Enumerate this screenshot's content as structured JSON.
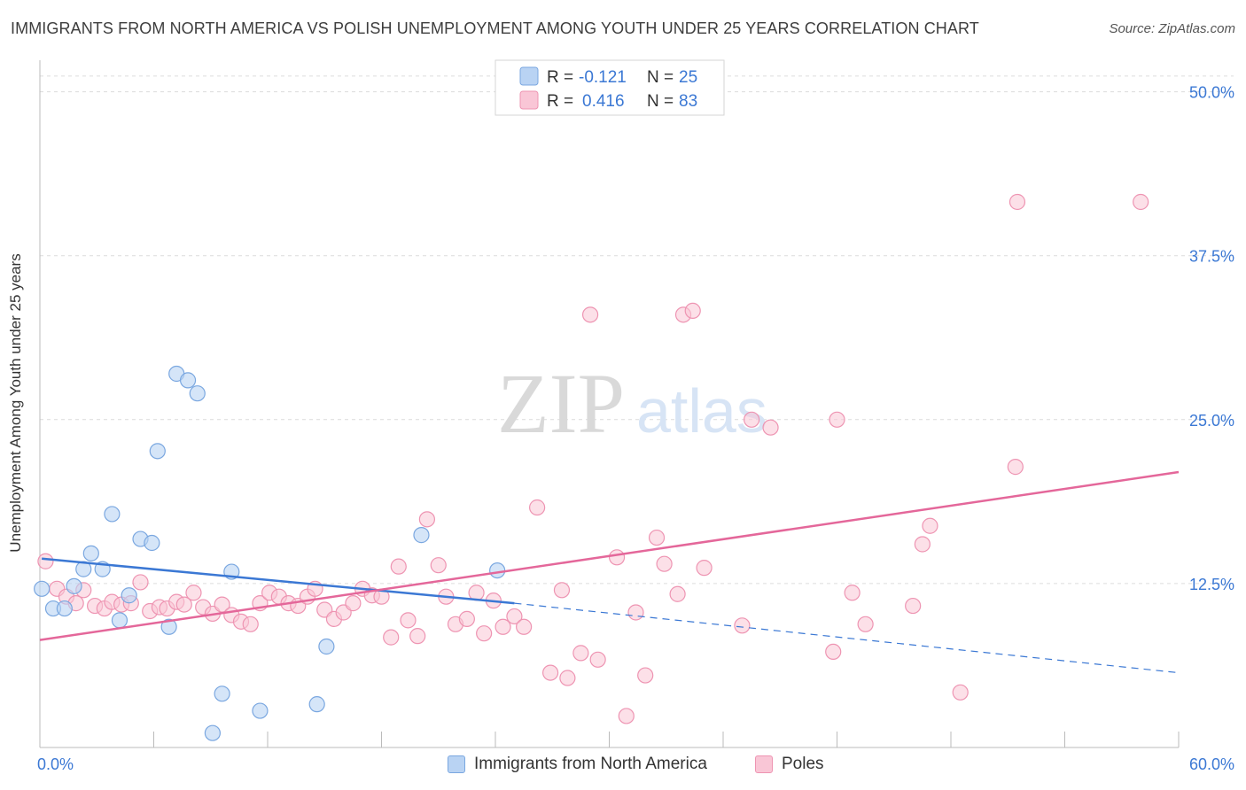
{
  "header": {
    "title": "IMMIGRANTS FROM NORTH AMERICA VS POLISH UNEMPLOYMENT AMONG YOUTH UNDER 25 YEARS CORRELATION CHART",
    "source": "Source: ZipAtlas.com"
  },
  "watermark": {
    "zip": "ZIP",
    "atlas": "atlas"
  },
  "colors": {
    "blue_fill": "#b9d3f3",
    "blue_stroke": "#7aa7e0",
    "blue_line": "#3b78d4",
    "pink_fill": "#f9c6d6",
    "pink_stroke": "#ee94b2",
    "pink_line": "#e4679a",
    "value_text": "#3b78d4"
  },
  "legend": {
    "rows": [
      {
        "r_label": "R =",
        "r_value": "-0.121",
        "n_label": "N =",
        "n_value": "25"
      },
      {
        "r_label": "R =",
        "r_value": "0.416",
        "n_label": "N =",
        "n_value": "83"
      }
    ]
  },
  "bottom_legend": [
    "Immigrants from North America",
    "Poles"
  ],
  "chart_data": {
    "type": "scatter",
    "title": "IMMIGRANTS FROM NORTH AMERICA VS POLISH UNEMPLOYMENT AMONG YOUTH UNDER 25 YEARS CORRELATION CHART",
    "xlabel": "",
    "ylabel": "Unemployment Among Youth under 25 years",
    "xlim": [
      0,
      60
    ],
    "ylim": [
      0,
      52
    ],
    "x_tick_labels": [
      "0.0%",
      "60.0%"
    ],
    "y_ticks": [
      12.5,
      25.0,
      37.5,
      50.0
    ],
    "y_tick_labels": [
      "12.5%",
      "25.0%",
      "37.5%",
      "50.0%"
    ],
    "grid": "horizontal dashed",
    "legend_position": "top-center",
    "series": [
      {
        "name": "Immigrants from North America",
        "r": -0.121,
        "n": 25,
        "trend": {
          "x0": 0.1,
          "y0": 14.4,
          "x1": 25,
          "y1": 11.0,
          "dashed_to_x": 60,
          "dashed_to_y": 5.7
        },
        "points": [
          [
            0.1,
            12.1
          ],
          [
            0.7,
            10.6
          ],
          [
            1.3,
            10.6
          ],
          [
            1.8,
            12.3
          ],
          [
            2.3,
            13.6
          ],
          [
            2.7,
            14.8
          ],
          [
            3.3,
            13.6
          ],
          [
            3.8,
            17.8
          ],
          [
            4.2,
            9.7
          ],
          [
            4.7,
            11.6
          ],
          [
            5.3,
            15.9
          ],
          [
            5.9,
            15.6
          ],
          [
            6.2,
            22.6
          ],
          [
            6.8,
            9.2
          ],
          [
            7.2,
            28.5
          ],
          [
            7.8,
            28.0
          ],
          [
            8.3,
            27.0
          ],
          [
            9.1,
            1.1
          ],
          [
            9.6,
            4.1
          ],
          [
            10.1,
            13.4
          ],
          [
            11.6,
            2.8
          ],
          [
            14.6,
            3.3
          ],
          [
            15.1,
            7.7
          ],
          [
            20.1,
            16.2
          ],
          [
            24.1,
            13.5
          ]
        ]
      },
      {
        "name": "Poles",
        "r": 0.416,
        "n": 83,
        "trend": {
          "x0": 0,
          "y0": 8.2,
          "x1": 60,
          "y1": 21.0
        },
        "points": [
          [
            0.3,
            14.2
          ],
          [
            0.9,
            12.1
          ],
          [
            1.4,
            11.5
          ],
          [
            1.9,
            11.0
          ],
          [
            2.3,
            12.0
          ],
          [
            2.9,
            10.8
          ],
          [
            3.4,
            10.6
          ],
          [
            3.8,
            11.1
          ],
          [
            4.3,
            10.9
          ],
          [
            4.8,
            11.0
          ],
          [
            5.3,
            12.6
          ],
          [
            5.8,
            10.4
          ],
          [
            6.3,
            10.7
          ],
          [
            6.7,
            10.6
          ],
          [
            7.2,
            11.1
          ],
          [
            7.6,
            10.9
          ],
          [
            8.1,
            11.8
          ],
          [
            8.6,
            10.7
          ],
          [
            9.1,
            10.2
          ],
          [
            9.6,
            10.9
          ],
          [
            10.1,
            10.1
          ],
          [
            10.6,
            9.6
          ],
          [
            11.1,
            9.4
          ],
          [
            11.6,
            11.0
          ],
          [
            12.1,
            11.8
          ],
          [
            12.6,
            11.5
          ],
          [
            13.1,
            11.0
          ],
          [
            13.6,
            10.8
          ],
          [
            14.1,
            11.5
          ],
          [
            14.5,
            12.1
          ],
          [
            15.0,
            10.5
          ],
          [
            15.5,
            9.8
          ],
          [
            16.0,
            10.3
          ],
          [
            16.5,
            11.0
          ],
          [
            17.0,
            12.1
          ],
          [
            17.5,
            11.6
          ],
          [
            18.0,
            11.5
          ],
          [
            18.5,
            8.4
          ],
          [
            18.9,
            13.8
          ],
          [
            19.4,
            9.7
          ],
          [
            19.9,
            8.5
          ],
          [
            20.4,
            17.4
          ],
          [
            21.0,
            13.9
          ],
          [
            21.4,
            11.5
          ],
          [
            21.9,
            9.4
          ],
          [
            22.5,
            9.8
          ],
          [
            23.0,
            11.8
          ],
          [
            23.4,
            8.7
          ],
          [
            23.9,
            11.2
          ],
          [
            24.4,
            9.2
          ],
          [
            25.0,
            10.0
          ],
          [
            25.5,
            9.2
          ],
          [
            26.2,
            18.3
          ],
          [
            26.9,
            5.7
          ],
          [
            27.5,
            12.0
          ],
          [
            27.8,
            5.3
          ],
          [
            28.5,
            7.2
          ],
          [
            29.0,
            33.0
          ],
          [
            29.4,
            6.7
          ],
          [
            30.4,
            14.5
          ],
          [
            30.9,
            2.4
          ],
          [
            31.4,
            10.3
          ],
          [
            31.9,
            5.5
          ],
          [
            32.5,
            16.0
          ],
          [
            32.9,
            14.0
          ],
          [
            33.6,
            11.7
          ],
          [
            33.9,
            33.0
          ],
          [
            34.4,
            33.3
          ],
          [
            35.0,
            13.7
          ],
          [
            37.0,
            9.3
          ],
          [
            37.5,
            25.0
          ],
          [
            38.5,
            24.4
          ],
          [
            41.8,
            7.3
          ],
          [
            42.0,
            25.0
          ],
          [
            42.8,
            11.8
          ],
          [
            43.5,
            9.4
          ],
          [
            46.0,
            10.8
          ],
          [
            46.5,
            15.5
          ],
          [
            46.9,
            16.9
          ],
          [
            48.5,
            4.2
          ],
          [
            51.4,
            21.4
          ],
          [
            51.5,
            41.6
          ],
          [
            58.0,
            41.6
          ]
        ]
      }
    ]
  }
}
